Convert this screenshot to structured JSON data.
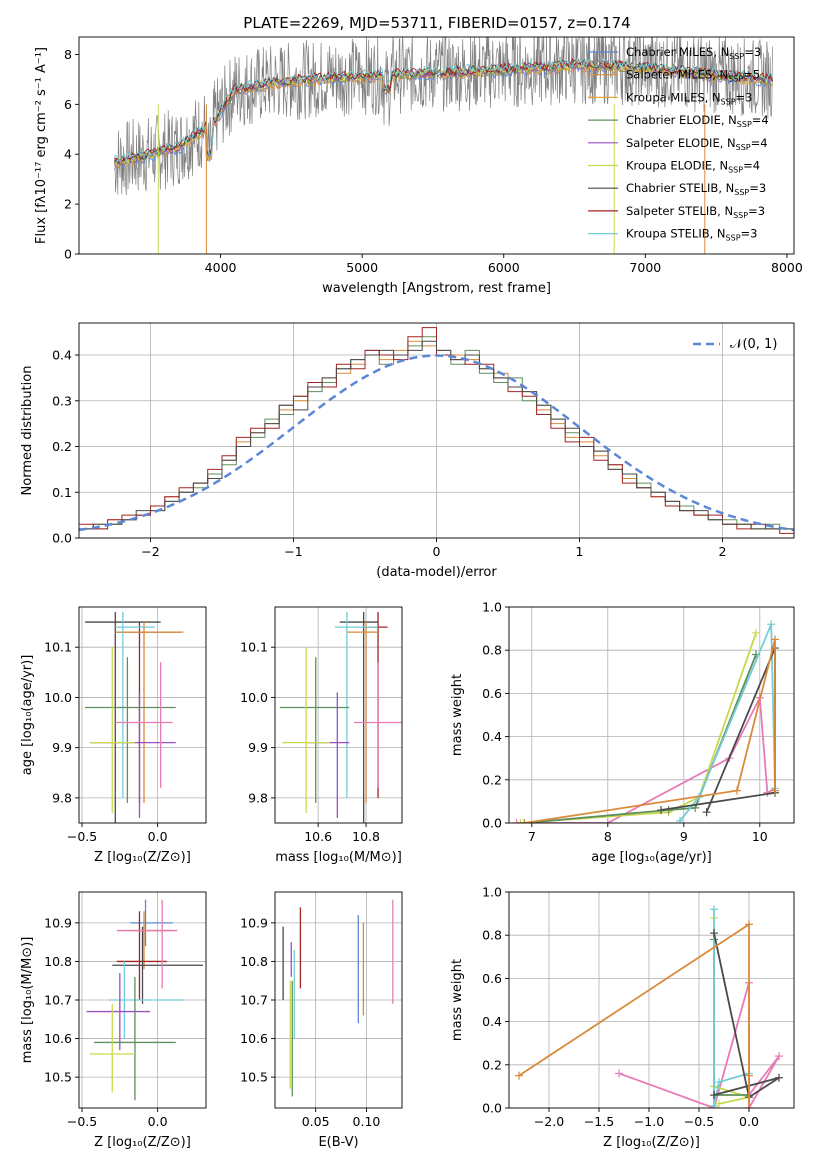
{
  "figure_title": "PLATE=2269, MJD=53711, FIBERID=0157, z=0.174",
  "legend": [
    {
      "name": "Chabrier MILES, N",
      "n": "3",
      "color": "#5b87d6"
    },
    {
      "name": "Salpeter MILES, N",
      "n": "5",
      "color": "#d98a3a"
    },
    {
      "name": "Kroupa MILES, N",
      "n": "3",
      "color": "#e8a23c"
    },
    {
      "name": "Chabrier ELODIE, N",
      "n": "4",
      "color": "#5f8f5f"
    },
    {
      "name": "Salpeter ELODIE, N",
      "n": "4",
      "color": "#9b4fc0"
    },
    {
      "name": "Kroupa ELODIE, N",
      "n": "4",
      "color": "#c9d84d"
    },
    {
      "name": "Chabrier STELIB, N",
      "n": "3",
      "color": "#4a4a4a"
    },
    {
      "name": "Salpeter STELIB, N",
      "n": "3",
      "color": "#a32222"
    },
    {
      "name": "Kroupa STELIB, N",
      "n": "3",
      "color": "#73cdd6"
    }
  ],
  "legend_sub": "SSP",
  "hist_legend": "𝒩(0, 1)",
  "chart_data": [
    {
      "id": "spectrum",
      "type": "line",
      "xlabel": "wavelength [Angstrom, rest frame]",
      "ylabel": "Flux [fλ10⁻¹⁷ erg cm⁻² s⁻¹ A⁻¹]",
      "xlim": [
        3000,
        8050
      ],
      "ylim": [
        0,
        8.7
      ],
      "xticks": [
        "4000",
        "5000",
        "6000",
        "7000",
        "8000"
      ],
      "yticks": [
        "0",
        "2",
        "4",
        "6",
        "8"
      ],
      "continuum_x": [
        3250,
        3500,
        3700,
        3950,
        4100,
        4400,
        4800,
        5200,
        5600,
        6000,
        6500,
        7000,
        7500,
        7900
      ],
      "continuum_y": [
        3.7,
        4.0,
        4.3,
        5.3,
        6.6,
        6.9,
        7.1,
        7.2,
        7.3,
        7.4,
        7.6,
        7.5,
        7.2,
        7.0
      ],
      "data_color": "#808080"
    },
    {
      "id": "residuals",
      "type": "bar",
      "xlabel": "(data-model)/error",
      "ylabel": "Normed distribution",
      "xlim": [
        -2.5,
        2.5
      ],
      "ylim": [
        0,
        0.47
      ],
      "xticks": [
        "−2",
        "−1",
        "0",
        "1",
        "2"
      ],
      "yticks": [
        "0.0",
        "0.1",
        "0.2",
        "0.3",
        "0.4"
      ],
      "bin_width": 0.1,
      "bins_start": -2.5,
      "series": [
        {
          "name": "Chabrier MILES",
          "values": [
            0.02,
            0.03,
            0.04,
            0.04,
            0.05,
            0.07,
            0.09,
            0.1,
            0.12,
            0.14,
            0.17,
            0.21,
            0.23,
            0.25,
            0.28,
            0.3,
            0.33,
            0.35,
            0.36,
            0.38,
            0.4,
            0.39,
            0.41,
            0.43,
            0.42,
            0.41,
            0.4,
            0.39,
            0.37,
            0.36,
            0.33,
            0.32,
            0.28,
            0.25,
            0.22,
            0.21,
            0.18,
            0.15,
            0.13,
            0.11,
            0.09,
            0.08,
            0.06,
            0.05,
            0.04,
            0.03,
            0.03,
            0.02,
            0.02,
            0.02
          ]
        },
        {
          "name": "Salpeter MILES",
          "values": [
            0.02,
            0.02,
            0.03,
            0.04,
            0.05,
            0.06,
            0.08,
            0.1,
            0.11,
            0.14,
            0.16,
            0.2,
            0.22,
            0.26,
            0.27,
            0.31,
            0.32,
            0.34,
            0.37,
            0.39,
            0.41,
            0.38,
            0.4,
            0.42,
            0.44,
            0.4,
            0.38,
            0.41,
            0.36,
            0.34,
            0.35,
            0.3,
            0.29,
            0.26,
            0.23,
            0.2,
            0.19,
            0.16,
            0.14,
            0.12,
            0.1,
            0.08,
            0.07,
            0.05,
            0.04,
            0.04,
            0.03,
            0.02,
            0.03,
            0.02
          ]
        },
        {
          "name": "Chabrier ELODIE",
          "values": [
            0.03,
            0.02,
            0.04,
            0.05,
            0.05,
            0.07,
            0.09,
            0.11,
            0.12,
            0.15,
            0.18,
            0.22,
            0.24,
            0.24,
            0.29,
            0.31,
            0.34,
            0.33,
            0.38,
            0.37,
            0.41,
            0.4,
            0.39,
            0.44,
            0.46,
            0.4,
            0.39,
            0.38,
            0.38,
            0.35,
            0.32,
            0.31,
            0.27,
            0.24,
            0.21,
            0.22,
            0.17,
            0.16,
            0.12,
            0.11,
            0.09,
            0.07,
            0.06,
            0.05,
            0.05,
            0.03,
            0.02,
            0.03,
            0.02,
            0.01
          ]
        },
        {
          "name": "Kroupa STELIB",
          "values": [
            0.02,
            0.03,
            0.03,
            0.04,
            0.06,
            0.06,
            0.08,
            0.1,
            0.12,
            0.13,
            0.17,
            0.2,
            0.23,
            0.25,
            0.29,
            0.28,
            0.33,
            0.35,
            0.37,
            0.39,
            0.4,
            0.41,
            0.4,
            0.41,
            0.43,
            0.41,
            0.39,
            0.4,
            0.37,
            0.35,
            0.33,
            0.32,
            0.29,
            0.26,
            0.24,
            0.2,
            0.19,
            0.15,
            0.14,
            0.11,
            0.1,
            0.08,
            0.06,
            0.06,
            0.04,
            0.03,
            0.03,
            0.02,
            0.02,
            0.02
          ]
        }
      ],
      "normal_curve": {
        "mean": 0,
        "sigma": 1
      }
    },
    {
      "id": "age_vs_Z",
      "type": "scatter",
      "xlabel": "Z [log₁₀(Z/Z⊙)]",
      "ylabel": "age  [log₁₀(age/yr)]",
      "xlim": [
        -0.52,
        0.32
      ],
      "ylim": [
        9.75,
        10.18
      ],
      "xticks": [
        "−0.5",
        "0.0"
      ],
      "yticks": [
        "9.8",
        "9.9",
        "10.0",
        "10.1"
      ],
      "errorbars": [
        {
          "x": -0.28,
          "y": 10.15,
          "xerr": [
            0.2,
            0.3
          ],
          "yerr": [
            0.4,
            0.02
          ],
          "c": "#4a4a4a"
        },
        {
          "x": -0.12,
          "y": 10.13,
          "xerr": [
            0.15,
            0.27
          ],
          "yerr": [
            0.34,
            0.02
          ],
          "c": "#a32222"
        },
        {
          "x": -0.09,
          "y": 10.13,
          "xerr": [
            0.19,
            0.26
          ],
          "yerr": [
            0.34,
            0.02
          ],
          "c": "#d98a3a"
        },
        {
          "x": -0.23,
          "y": 10.14,
          "xerr": [
            0.05,
            0.21
          ],
          "yerr": [
            0.34,
            0.03
          ],
          "c": "#73cdd6"
        },
        {
          "x": -0.2,
          "y": 9.98,
          "xerr": [
            0.28,
            0.32
          ],
          "yerr": [
            0.19,
            0.1
          ],
          "c": "#5f8f5f"
        },
        {
          "x": -0.12,
          "y": 9.91,
          "xerr": [
            0.32,
            0.24
          ],
          "yerr": [
            0.15,
            0.1
          ],
          "c": "#9b4fc0"
        },
        {
          "x": 0.02,
          "y": 9.95,
          "xerr": [
            0.3,
            0.08
          ],
          "yerr": [
            0.13,
            0.12
          ],
          "c": "#e87bb5"
        },
        {
          "x": -0.3,
          "y": 9.91,
          "xerr": [
            0.15,
            0.15
          ],
          "yerr": [
            0.14,
            0.19
          ],
          "c": "#c9d84d"
        }
      ]
    },
    {
      "id": "age_vs_mass",
      "type": "scatter",
      "xlabel": "mass [log₁₀(M/M⊙)]",
      "ylabel": "",
      "xlim": [
        10.42,
        10.95
      ],
      "ylim": [
        9.75,
        10.18
      ],
      "xticks": [
        "10.6",
        "10.8"
      ],
      "yticks": [
        "9.8",
        "9.9",
        "10.0",
        "10.1"
      ],
      "errorbars": [
        {
          "x": 10.79,
          "y": 10.15,
          "xerr": [
            0.1,
            0.06
          ],
          "yerr": [
            0.4,
            0.02
          ],
          "c": "#4a4a4a"
        },
        {
          "x": 10.85,
          "y": 10.14,
          "xerr": [
            0.07,
            0.04
          ],
          "yerr": [
            0.34,
            0.03
          ],
          "c": "#a32222"
        },
        {
          "x": 10.8,
          "y": 10.13,
          "xerr": [
            0.08,
            0.05
          ],
          "yerr": [
            0.34,
            0.02
          ],
          "c": "#d98a3a"
        },
        {
          "x": 10.72,
          "y": 10.14,
          "xerr": [
            0.05,
            0.13
          ],
          "yerr": [
            0.34,
            0.03
          ],
          "c": "#73cdd6"
        },
        {
          "x": 10.59,
          "y": 9.98,
          "xerr": [
            0.15,
            0.14
          ],
          "yerr": [
            0.19,
            0.1
          ],
          "c": "#5f8f5f"
        },
        {
          "x": 10.68,
          "y": 9.91,
          "xerr": [
            0.12,
            0.05
          ],
          "yerr": [
            0.15,
            0.1
          ],
          "c": "#9b4fc0"
        },
        {
          "x": 10.85,
          "y": 9.95,
          "xerr": [
            0.1,
            0.1
          ],
          "yerr": [
            0.13,
            0.12
          ],
          "c": "#e87bb5"
        },
        {
          "x": 10.55,
          "y": 9.91,
          "xerr": [
            0.1,
            0.1
          ],
          "yerr": [
            0.14,
            0.19
          ],
          "c": "#c9d84d"
        }
      ]
    },
    {
      "id": "mw_vs_age",
      "type": "line",
      "xlabel": "age  [log₁₀(age/yr)]",
      "ylabel": "mass weight",
      "xlim": [
        6.7,
        10.45
      ],
      "ylim": [
        0,
        1.0
      ],
      "xticks": [
        "7",
        "8",
        "9",
        "10"
      ],
      "yticks": [
        "0.0",
        "0.2",
        "0.4",
        "0.6",
        "0.8",
        "1.0"
      ],
      "series": [
        {
          "c": "#e87bb5",
          "x": [
            6.8,
            8.0,
            9.6,
            10.0,
            10.1,
            10.2
          ],
          "y": [
            0.0,
            0.0,
            0.3,
            0.58,
            0.14,
            0.16
          ]
        },
        {
          "c": "#c9d84d",
          "x": [
            6.85,
            8.8,
            9.2,
            9.95
          ],
          "y": [
            0.0,
            0.05,
            0.12,
            0.88
          ]
        },
        {
          "c": "#5f8f5f",
          "x": [
            6.9,
            8.8,
            9.15,
            9.95
          ],
          "y": [
            0.0,
            0.06,
            0.07,
            0.78
          ]
        },
        {
          "c": "#73cdd6",
          "x": [
            8.95,
            9.2,
            10.15,
            10.2
          ],
          "y": [
            0.01,
            0.12,
            0.92,
            0.16
          ]
        },
        {
          "c": "#4a4a4a",
          "x": [
            8.7,
            10.2,
            10.2,
            9.3
          ],
          "y": [
            0.06,
            0.14,
            0.81,
            0.05
          ]
        },
        {
          "c": "#d98a3a",
          "x": [
            6.9,
            9.7,
            10.2,
            10.2
          ],
          "y": [
            0.0,
            0.15,
            0.85,
            0.15
          ]
        }
      ]
    },
    {
      "id": "mass_vs_Z",
      "type": "scatter",
      "xlabel": "Z [log₁₀(Z/Z⊙)]",
      "ylabel": "mass [log₁₀(M/M⊙)]",
      "xlim": [
        -0.52,
        0.32
      ],
      "ylim": [
        10.42,
        10.98
      ],
      "xticks": [
        "−0.5",
        "0.0"
      ],
      "yticks": [
        "10.5",
        "10.6",
        "10.7",
        "10.8",
        "10.9"
      ],
      "errorbars": [
        {
          "x": -0.08,
          "y": 10.9,
          "xerr": [
            0.1,
            0.18
          ],
          "yerr": [
            0.06,
            0.06
          ],
          "c": "#5b87d6"
        },
        {
          "x": -0.09,
          "y": 10.88,
          "xerr": [
            0.1,
            0.19
          ],
          "yerr": [
            0.1,
            0.05
          ],
          "c": "#d98a3a"
        },
        {
          "x": -0.12,
          "y": 10.8,
          "xerr": [
            0.15,
            0.18
          ],
          "yerr": [
            0.1,
            0.13
          ],
          "c": "#a32222"
        },
        {
          "x": -0.1,
          "y": 10.79,
          "xerr": [
            0.2,
            0.4
          ],
          "yerr": [
            0.1,
            0.1
          ],
          "c": "#4a4a4a"
        },
        {
          "x": 0.03,
          "y": 10.88,
          "xerr": [
            0.3,
            0.1
          ],
          "yerr": [
            0.15,
            0.08
          ],
          "c": "#e87bb5"
        },
        {
          "x": -0.22,
          "y": 10.7,
          "xerr": [
            0.1,
            0.4
          ],
          "yerr": [
            0.1,
            0.1
          ],
          "c": "#73cdd6"
        },
        {
          "x": -0.25,
          "y": 10.67,
          "xerr": [
            0.22,
            0.2
          ],
          "yerr": [
            0.1,
            0.1
          ],
          "c": "#9b4fc0"
        },
        {
          "x": -0.15,
          "y": 10.59,
          "xerr": [
            0.27,
            0.27
          ],
          "yerr": [
            0.15,
            0.17
          ],
          "c": "#5f8f5f"
        },
        {
          "x": -0.3,
          "y": 10.56,
          "xerr": [
            0.15,
            0.15
          ],
          "yerr": [
            0.1,
            0.13
          ],
          "c": "#c9d84d"
        }
      ]
    },
    {
      "id": "mass_vs_EBV",
      "type": "scatter",
      "xlabel": "E(B-V)",
      "ylabel": "",
      "xlim": [
        0.01,
        0.135
      ],
      "ylim": [
        10.42,
        10.98
      ],
      "xticks": [
        "0.05",
        "0.10"
      ],
      "yticks": [
        "10.5",
        "10.6",
        "10.7",
        "10.8",
        "10.9"
      ],
      "errorbars": [
        {
          "x": 0.092,
          "y": 10.78,
          "yerr": [
            0.14,
            0.14
          ],
          "c": "#5b87d6"
        },
        {
          "x": 0.097,
          "y": 10.78,
          "yerr": [
            0.12,
            0.12
          ],
          "c": "#d98a3a"
        },
        {
          "x": 0.035,
          "y": 10.83,
          "yerr": [
            0.1,
            0.11
          ],
          "c": "#a32222"
        },
        {
          "x": 0.018,
          "y": 10.8,
          "yerr": [
            0.1,
            0.09
          ],
          "c": "#4a4a4a"
        },
        {
          "x": 0.126,
          "y": 10.82,
          "yerr": [
            0.13,
            0.14
          ],
          "c": "#e87bb5"
        },
        {
          "x": 0.029,
          "y": 10.7,
          "yerr": [
            0.1,
            0.13
          ],
          "c": "#73cdd6"
        },
        {
          "x": 0.026,
          "y": 10.8,
          "yerr": [
            0.04,
            0.05
          ],
          "c": "#9b4fc0"
        },
        {
          "x": 0.027,
          "y": 10.6,
          "yerr": [
            0.15,
            0.15
          ],
          "c": "#5f8f5f"
        },
        {
          "x": 0.025,
          "y": 10.6,
          "yerr": [
            0.13,
            0.15
          ],
          "c": "#c9d84d"
        }
      ]
    },
    {
      "id": "mw_vs_Z",
      "type": "line",
      "xlabel": "Z [log₁₀(Z/Z⊙)]",
      "ylabel": "mass weight",
      "xlim": [
        -2.4,
        0.45
      ],
      "ylim": [
        0,
        1.0
      ],
      "xticks": [
        "−2.0",
        "−1.5",
        "−1.0",
        "−0.5",
        "0.0"
      ],
      "yticks": [
        "0.0",
        "0.2",
        "0.4",
        "0.6",
        "0.8",
        "1.0"
      ],
      "series": [
        {
          "c": "#e87bb5",
          "x": [
            -1.3,
            -0.35,
            0.0,
            0.0,
            0.3,
            0.0
          ],
          "y": [
            0.16,
            0.0,
            0.58,
            0.0,
            0.24,
            0.06
          ]
        },
        {
          "c": "#c9d84d",
          "x": [
            -0.35,
            -0.35,
            0.0,
            -0.3
          ],
          "y": [
            0.88,
            0.1,
            0.05,
            0.02
          ]
        },
        {
          "c": "#5f8f5f",
          "x": [
            -0.35,
            -0.35,
            0.0
          ],
          "y": [
            0.78,
            0.06,
            0.06
          ]
        },
        {
          "c": "#73cdd6",
          "x": [
            -0.35,
            -0.35,
            -0.3,
            0.0
          ],
          "y": [
            0.92,
            0.01,
            0.12,
            0.16
          ]
        },
        {
          "c": "#4a4a4a",
          "x": [
            -0.35,
            0.0,
            0.3,
            -0.35
          ],
          "y": [
            0.81,
            0.05,
            0.14,
            0.06
          ]
        },
        {
          "c": "#d98a3a",
          "x": [
            -2.3,
            0.0,
            0.0,
            0.0
          ],
          "y": [
            0.15,
            0.85,
            0.0,
            0.15
          ]
        }
      ]
    }
  ]
}
